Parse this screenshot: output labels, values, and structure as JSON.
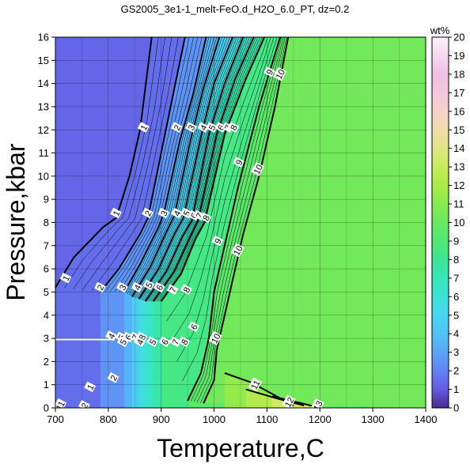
{
  "chart_data": {
    "type": "heatmap",
    "title": "GS2005_3e1-1_melt-FeO.d_H2O_6.0_PT, dz=0.2",
    "xlabel": "Temperature,C",
    "ylabel": "Pressure,kbar",
    "xlim": [
      700,
      1400
    ],
    "ylim": [
      0,
      16
    ],
    "x_ticks": [
      "700",
      "800",
      "900",
      "1000",
      "1100",
      "1200",
      "1300",
      "1400"
    ],
    "y_ticks": [
      "0",
      "1",
      "2",
      "3",
      "4",
      "5",
      "6",
      "7",
      "8",
      "9",
      "10",
      "11",
      "12",
      "13",
      "14",
      "15",
      "16"
    ],
    "grid": true,
    "colorbar": {
      "unit": "wt%",
      "range": [
        0,
        20
      ],
      "ticks": [
        "0",
        "1",
        "2",
        "3",
        "4",
        "5",
        "6",
        "7",
        "8",
        "9",
        "10",
        "11",
        "12",
        "13",
        "14",
        "15",
        "16",
        "17",
        "18",
        "19",
        "20"
      ]
    },
    "plateau_value": 10.3,
    "contour_levels": [
      1,
      2,
      3,
      4,
      5,
      6,
      7,
      8,
      9,
      10,
      11,
      12,
      13
    ],
    "contours": [
      {
        "level": 1,
        "points": [
          [
            700,
            5.2
          ],
          [
            735,
            6.5
          ],
          [
            790,
            7.8
          ],
          [
            815,
            8.2
          ],
          [
            840,
            10.0
          ],
          [
            860,
            12.0
          ],
          [
            882,
            16.0
          ]
        ]
      },
      {
        "level": 2,
        "points": [
          [
            785,
            5.0
          ],
          [
            820,
            6.0
          ],
          [
            860,
            7.5
          ],
          [
            875,
            8.2
          ],
          [
            900,
            11.0
          ],
          [
            925,
            13.8
          ],
          [
            945,
            16.0
          ]
        ]
      },
      {
        "level": 3,
        "points": [
          [
            830,
            5.0
          ],
          [
            860,
            6.2
          ],
          [
            895,
            7.8
          ],
          [
            905,
            8.4
          ],
          [
            935,
            11.5
          ],
          [
            960,
            13.5
          ],
          [
            985,
            16.0
          ]
        ]
      },
      {
        "level": 4,
        "points": [
          [
            845,
            4.8
          ],
          [
            880,
            6.1
          ],
          [
            910,
            7.6
          ],
          [
            925,
            8.3
          ],
          [
            955,
            11.5
          ],
          [
            980,
            13.8
          ],
          [
            1010,
            16.0
          ]
        ]
      },
      {
        "level": 5,
        "points": [
          [
            858,
            4.7
          ],
          [
            895,
            6.0
          ],
          [
            925,
            7.5
          ],
          [
            942,
            8.2
          ],
          [
            975,
            11.7
          ],
          [
            1000,
            14.0
          ],
          [
            1035,
            16.0
          ]
        ]
      },
      {
        "level": 6,
        "points": [
          [
            870,
            4.6
          ],
          [
            910,
            5.9
          ],
          [
            940,
            7.4
          ],
          [
            958,
            8.1
          ],
          [
            990,
            11.8
          ],
          [
            1020,
            14.0
          ],
          [
            1055,
            16.0
          ]
        ]
      },
      {
        "level": 7,
        "points": [
          [
            885,
            4.6
          ],
          [
            925,
            5.9
          ],
          [
            955,
            7.4
          ],
          [
            970,
            8.1
          ],
          [
            1005,
            11.8
          ],
          [
            1040,
            14.2
          ],
          [
            1075,
            16.0
          ]
        ]
      },
      {
        "level": 8,
        "points": [
          [
            900,
            4.6
          ],
          [
            938,
            5.8
          ],
          [
            965,
            7.3
          ],
          [
            982,
            8.0
          ],
          [
            1020,
            11.8
          ],
          [
            1060,
            14.2
          ],
          [
            1095,
            16.0
          ]
        ]
      },
      {
        "level": 9,
        "points": [
          [
            950,
            0.3
          ],
          [
            975,
            1.5
          ],
          [
            990,
            3.0
          ],
          [
            1000,
            5.0
          ],
          [
            1020,
            7.0
          ],
          [
            1045,
            9.5
          ],
          [
            1085,
            13.0
          ],
          [
            1125,
            16.0
          ]
        ]
      },
      {
        "level": 10,
        "points": [
          [
            980,
            0.2
          ],
          [
            1000,
            1.2
          ],
          [
            1005,
            2.5
          ],
          [
            1030,
            5.0
          ],
          [
            1055,
            7.5
          ],
          [
            1085,
            10.0
          ],
          [
            1115,
            13.0
          ],
          [
            1140,
            16.0
          ]
        ]
      },
      {
        "level": 11,
        "points": [
          [
            1020,
            1.5
          ],
          [
            1070,
            1.1
          ],
          [
            1110,
            0.6
          ],
          [
            1150,
            0.1
          ]
        ]
      },
      {
        "level": 12,
        "points": [
          [
            1060,
            0.8
          ],
          [
            1120,
            0.4
          ],
          [
            1170,
            0.1
          ]
        ]
      },
      {
        "level": 13,
        "points": [
          [
            1110,
            0.5
          ],
          [
            1165,
            0.2
          ],
          [
            1200,
            0.0
          ]
        ]
      }
    ],
    "contour_labels": [
      {
        "text": "1",
        "x": 867,
        "y": 12.1
      },
      {
        "text": "2",
        "x": 930,
        "y": 12.1
      },
      {
        "text": "3",
        "x": 957,
        "y": 12.1
      },
      {
        "text": "4",
        "x": 980,
        "y": 12.1
      },
      {
        "text": "5",
        "x": 996,
        "y": 12.1
      },
      {
        "text": "6",
        "x": 1013,
        "y": 12.1
      },
      {
        "text": "7",
        "x": 1026,
        "y": 12.1
      },
      {
        "text": "8",
        "x": 1037,
        "y": 12.1
      },
      {
        "text": "9",
        "x": 1105,
        "y": 14.5
      },
      {
        "text": "10",
        "x": 1125,
        "y": 14.4
      },
      {
        "text": "9",
        "x": 1047,
        "y": 10.6
      },
      {
        "text": "10",
        "x": 1083,
        "y": 10.3
      },
      {
        "text": "1",
        "x": 815,
        "y": 8.4
      },
      {
        "text": "2",
        "x": 875,
        "y": 8.4
      },
      {
        "text": "3",
        "x": 905,
        "y": 8.4
      },
      {
        "text": "4",
        "x": 930,
        "y": 8.4
      },
      {
        "text": "5",
        "x": 948,
        "y": 8.4
      },
      {
        "text": "6",
        "x": 962,
        "y": 8.3
      },
      {
        "text": "7",
        "x": 972,
        "y": 8.3
      },
      {
        "text": "8",
        "x": 985,
        "y": 8.2
      },
      {
        "text": "9",
        "x": 1007,
        "y": 7.2
      },
      {
        "text": "10",
        "x": 1045,
        "y": 6.8
      },
      {
        "text": "1",
        "x": 720,
        "y": 5.6
      },
      {
        "text": "2",
        "x": 785,
        "y": 5.2
      },
      {
        "text": "3",
        "x": 827,
        "y": 5.2
      },
      {
        "text": "4",
        "x": 855,
        "y": 5.2
      },
      {
        "text": "5",
        "x": 877,
        "y": 5.3
      },
      {
        "text": "6",
        "x": 897,
        "y": 5.2
      },
      {
        "text": "7",
        "x": 922,
        "y": 5.1
      },
      {
        "text": "8",
        "x": 948,
        "y": 5.1
      },
      {
        "text": "6",
        "x": 962,
        "y": 3.5
      },
      {
        "text": "4",
        "x": 806,
        "y": 3.1
      },
      {
        "text": "5",
        "x": 825,
        "y": 3.05
      },
      {
        "text": "6",
        "x": 838,
        "y": 3.05
      },
      {
        "text": "7",
        "x": 851,
        "y": 3.05
      },
      {
        "text": "8",
        "x": 864,
        "y": 3.05
      },
      {
        "text": "5",
        "x": 828,
        "y": 2.85
      },
      {
        "text": "4",
        "x": 860,
        "y": 2.85
      },
      {
        "text": "5",
        "x": 884,
        "y": 2.85
      },
      {
        "text": "6",
        "x": 907,
        "y": 2.85
      },
      {
        "text": "7",
        "x": 927,
        "y": 2.85
      },
      {
        "text": "8",
        "x": 944,
        "y": 2.85
      },
      {
        "text": "10",
        "x": 1003,
        "y": 3.0
      },
      {
        "text": "1",
        "x": 766,
        "y": 0.9
      },
      {
        "text": "2",
        "x": 810,
        "y": 1.3
      },
      {
        "text": "11",
        "x": 1078,
        "y": 1.0
      },
      {
        "text": "12",
        "x": 1142,
        "y": 0.25
      },
      {
        "text": "13",
        "x": 1196,
        "y": 0.1
      },
      {
        "text": "11",
        "x": 709,
        "y": 0.1
      },
      {
        "text": "2",
        "x": 755,
        "y": 0.1
      }
    ]
  }
}
